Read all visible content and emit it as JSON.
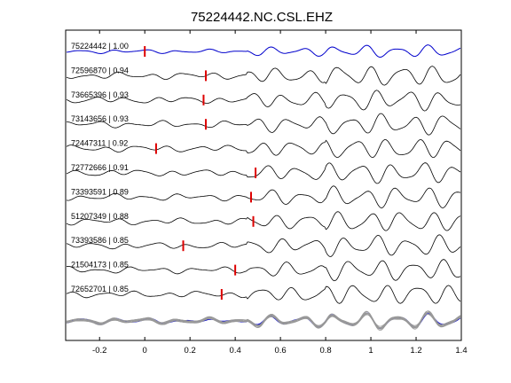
{
  "chart_data": {
    "type": "line",
    "title": "75224442.NC.CSL.EHZ",
    "xlabel": "",
    "ylabel": "",
    "xlim": [
      -0.35,
      1.4
    ],
    "xticks": [
      "-0.2",
      "0",
      "0.2",
      "0.4",
      "0.6",
      "0.8",
      "1",
      "1.2",
      "1.4"
    ],
    "xtick_values": [
      -0.2,
      0,
      0.2,
      0.4,
      0.6,
      0.8,
      1.0,
      1.2,
      1.4
    ],
    "grid": false,
    "colors": {
      "reference": "#0000cc",
      "trace": "#000000",
      "pick": "#dd0000",
      "stack_gray": "#999999"
    },
    "series": [
      {
        "name": "75224442 | 1.00",
        "pick": 0.0,
        "reference": true
      },
      {
        "name": "72596870 | 0.94",
        "pick": 0.27
      },
      {
        "name": "73665396 | 0.93",
        "pick": 0.26
      },
      {
        "name": "73143656 | 0.93",
        "pick": 0.27
      },
      {
        "name": "72447311 | 0.92",
        "pick": 0.05
      },
      {
        "name": "72772666 | 0.91",
        "pick": 0.49
      },
      {
        "name": "73393591 | 0.89",
        "pick": 0.47
      },
      {
        "name": "51207349 | 0.88",
        "pick": 0.48
      },
      {
        "name": "73393586 | 0.85",
        "pick": 0.17
      },
      {
        "name": "21504173 | 0.85",
        "pick": 0.4
      },
      {
        "name": "72652701 | 0.85",
        "pick": 0.34
      }
    ]
  }
}
